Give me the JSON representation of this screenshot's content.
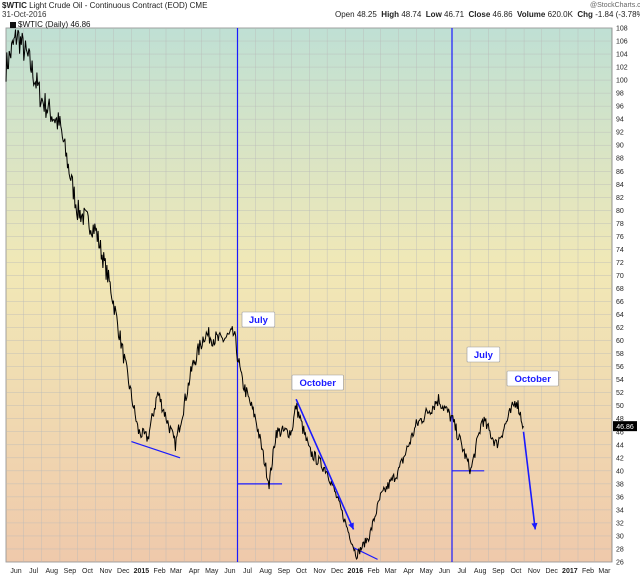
{
  "header": {
    "symbol": "$WTIC",
    "title": "Light Crude Oil - Continuous Contract (EOD)",
    "exchange": "CME",
    "date": "31-Oct-2016",
    "open_label": "Open",
    "open": "48.25",
    "high_label": "High",
    "high": "48.74",
    "low_label": "Low",
    "low": "46.71",
    "close_label": "Close",
    "close": "46.86",
    "volume_label": "Volume",
    "volume": "620.0K",
    "chg_label": "Chg",
    "chg": "-1.84 (-3.78%)",
    "logo": "@StockCharts.com",
    "legend": "$WTIC (Daily) 46.86"
  },
  "colors": {
    "price": "#000000",
    "annotation": "#1a1aff",
    "grid": "#b9b9b9"
  },
  "chart_data": {
    "type": "line",
    "title": "Light Crude Oil - Continuous Contract (EOD)",
    "ylim": [
      26,
      108
    ],
    "yticks": [
      26,
      28,
      30,
      32,
      34,
      36,
      38,
      40,
      42,
      44,
      46,
      48,
      50,
      52,
      54,
      56,
      58,
      60,
      62,
      64,
      66,
      68,
      70,
      72,
      74,
      76,
      78,
      80,
      82,
      84,
      86,
      88,
      90,
      92,
      94,
      96,
      98,
      100,
      102,
      104,
      106,
      108
    ],
    "xlim": [
      "2014-06-01",
      "2017-03-31"
    ],
    "xticks": [
      "Jun",
      "Jul",
      "Aug",
      "Sep",
      "Oct",
      "Nov",
      "Dec",
      "2015",
      "Feb",
      "Mar",
      "Apr",
      "May",
      "Jun",
      "Jul",
      "Aug",
      "Sep",
      "Oct",
      "Nov",
      "Dec",
      "2016",
      "Feb",
      "Mar",
      "Apr",
      "May",
      "Jun",
      "Jul",
      "Aug",
      "Sep",
      "Oct",
      "Nov",
      "Dec",
      "2017",
      "Feb",
      "Mar"
    ],
    "x": [
      "2014-06-01",
      "2014-06-20",
      "2014-07-10",
      "2014-08-01",
      "2014-09-01",
      "2014-10-01",
      "2014-11-01",
      "2014-11-27",
      "2014-12-20",
      "2015-01-13",
      "2015-01-29",
      "2015-02-15",
      "2015-03-17",
      "2015-04-15",
      "2015-05-06",
      "2015-06-01",
      "2015-06-25",
      "2015-07-08",
      "2015-08-01",
      "2015-08-24",
      "2015-09-05",
      "2015-10-01",
      "2015-10-09",
      "2015-11-01",
      "2015-12-01",
      "2015-12-21",
      "2016-01-20",
      "2016-02-11",
      "2016-03-01",
      "2016-04-01",
      "2016-05-01",
      "2016-06-08",
      "2016-07-01",
      "2016-08-02",
      "2016-08-22",
      "2016-09-15",
      "2016-10-19",
      "2016-10-31"
    ],
    "series": [
      {
        "values": [
          102,
          107,
          103,
          97,
          93,
          80,
          77,
          68,
          57,
          46,
          45,
          52,
          44,
          56,
          61,
          60,
          61,
          54,
          48,
          38,
          46,
          46,
          50,
          43,
          40,
          35,
          27,
          30,
          36,
          40,
          47,
          51,
          48,
          40,
          48,
          44,
          51,
          46.86
        ]
      }
    ],
    "annotations": [
      {
        "label": "July",
        "date": "2015-07-01"
      },
      {
        "label": "October",
        "date": "2015-10-01"
      },
      {
        "label": "July",
        "date": "2016-07-01"
      },
      {
        "label": "October",
        "date": "2016-10-01"
      }
    ],
    "vertical_lines": [
      "2015-07-01",
      "2016-07-01"
    ],
    "support_levels": [
      {
        "y": 38,
        "from": "2015-07-01",
        "to": "2015-09-15"
      },
      {
        "y": 40,
        "from": "2016-07-01",
        "to": "2016-08-25"
      }
    ],
    "trend_lines": [
      {
        "from": [
          "2015-01-01",
          44.5
        ],
        "to": [
          "2015-03-25",
          42
        ]
      },
      {
        "from": [
          "2016-01-15",
          28.2
        ],
        "to": [
          "2016-02-25",
          26.4
        ]
      }
    ],
    "arrows": [
      {
        "from": [
          "2015-10-09",
          51
        ],
        "to": [
          "2016-01-15",
          31
        ]
      },
      {
        "from": [
          "2016-10-31",
          46
        ],
        "to": [
          "2016-11-20",
          31
        ]
      }
    ],
    "grid": true
  }
}
